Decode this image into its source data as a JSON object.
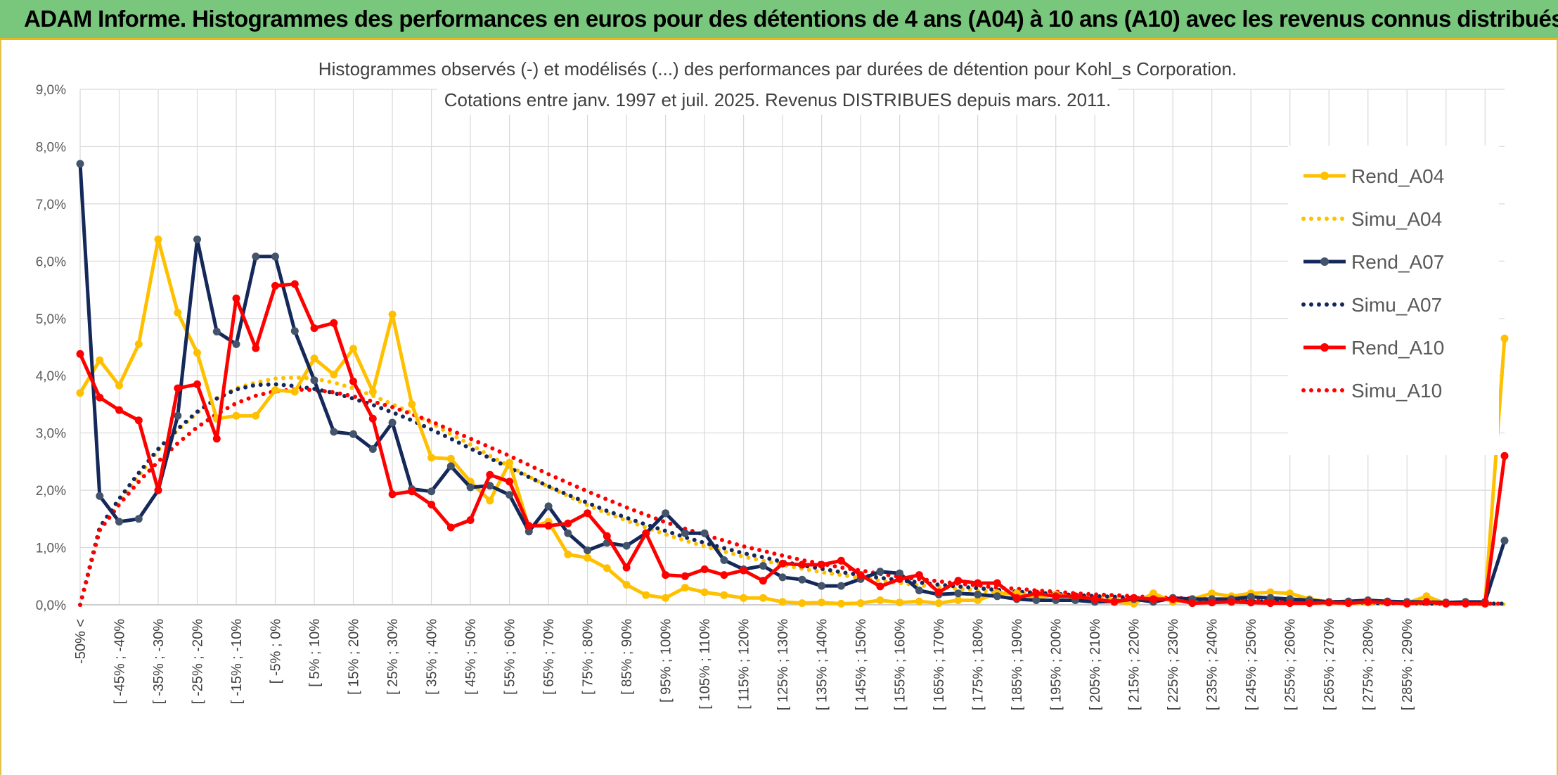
{
  "header": {
    "title": "ADAM Informe. Histogrammes des performances en euros pour des détentions de 4 ans (A04) à 10 ans (A10) avec les revenus connus distribués"
  },
  "chart_data": {
    "type": "line",
    "title": "Histogrammes observés (-) et modélisés (...) des performances par durées de détention pour Kohl_s Corporation.",
    "subtitle": "Cotations entre janv. 1997 et juil. 2025. Revenus DISTRIBUES depuis mars. 2011.",
    "xlabel": "",
    "ylabel": "",
    "ylim": [
      0,
      9
    ],
    "y_unit": "%",
    "y_ticks": [
      "0,0%",
      "1,0%",
      "2,0%",
      "3,0%",
      "4,0%",
      "5,0%",
      "6,0%",
      "7,0%",
      "8,0%",
      "9,0%"
    ],
    "grid": true,
    "legend_position": "right",
    "x_tick_labels": [
      "-50% <",
      "[ -45% ; -40%",
      "[ -35% ; -30%",
      "[ -25% ; -20%",
      "[ -15% ; -10%",
      "[ -5% ; 0%",
      "[ 5% ; 10%",
      "[ 15% ; 20%",
      "[ 25% ; 30%",
      "[ 35% ; 40%",
      "[ 45% ; 50%",
      "[ 55% ; 60%",
      "[ 65% ; 70%",
      "[ 75% ; 80%",
      "[ 85% ; 90%",
      "[ 95% ; 100%",
      "[ 105% ; 110%",
      "[ 115% ; 120%",
      "[ 125% ; 130%",
      "[ 135% ; 140%",
      "[ 145% ; 150%",
      "[ 155% ; 160%",
      "[ 165% ; 170%",
      "[ 175% ; 180%",
      "[ 185% ; 190%",
      "[ 195% ; 200%",
      "[ 205% ; 210%",
      "[ 215% ; 220%",
      "[ 225% ; 230%",
      "[ 235% ; 240%",
      "[ 245% ; 250%",
      "[ 255% ; 260%",
      "[ 265% ; 270%",
      "[ 275% ; 280%",
      "[ 285% ; 290%"
    ],
    "series": [
      {
        "name": "Rend_A04",
        "style": "solid",
        "color": "#ffc000",
        "values": [
          3.7,
          4.27,
          3.83,
          4.55,
          6.38,
          5.1,
          4.4,
          3.25,
          3.3,
          3.3,
          3.75,
          3.72,
          4.3,
          4.02,
          4.47,
          3.72,
          5.07,
          3.5,
          2.57,
          2.55,
          2.15,
          1.82,
          2.48,
          1.35,
          1.45,
          0.88,
          0.82,
          0.64,
          0.35,
          0.17,
          0.12,
          0.3,
          0.22,
          0.17,
          0.12,
          0.12,
          0.05,
          0.03,
          0.04,
          0.02,
          0.03,
          0.08,
          0.04,
          0.06,
          0.03,
          0.08,
          0.08,
          0.2,
          0.2,
          0.12,
          0.18,
          0.13,
          0.1,
          0.05,
          0.02,
          0.2,
          0.05,
          0.1,
          0.2,
          0.15,
          0.2,
          0.22,
          0.2,
          0.1,
          0.05,
          0.03,
          0.04,
          0.05,
          0.03,
          0.15,
          0.02,
          0.05,
          0.02,
          4.65
        ]
      },
      {
        "name": "Simu_A04",
        "style": "dotted",
        "color": "#ffc000",
        "values": [
          0,
          1.3,
          1.8,
          2.25,
          2.7,
          3.05,
          3.35,
          3.6,
          3.78,
          3.88,
          3.95,
          3.97,
          3.95,
          3.88,
          3.78,
          3.65,
          3.5,
          3.35,
          3.17,
          2.98,
          2.8,
          2.6,
          2.42,
          2.24,
          2.06,
          1.9,
          1.74,
          1.6,
          1.47,
          1.35,
          1.23,
          1.12,
          1.02,
          0.93,
          0.84,
          0.77,
          0.7,
          0.63,
          0.57,
          0.52,
          0.47,
          0.42,
          0.38,
          0.34,
          0.31,
          0.28,
          0.25,
          0.22,
          0.2,
          0.18,
          0.16,
          0.14,
          0.13,
          0.11,
          0.1,
          0.09,
          0.08,
          0.07,
          0.06,
          0.05,
          0.05,
          0.04,
          0.04,
          0.03,
          0.03,
          0.03,
          0.02,
          0.02,
          0.02,
          0.02,
          0.02,
          0.01,
          0.01,
          0.01
        ]
      },
      {
        "name": "Rend_A07",
        "style": "solid",
        "color": "#14285a",
        "values": [
          7.7,
          1.9,
          1.45,
          1.5,
          2.0,
          3.3,
          6.38,
          4.77,
          4.55,
          6.08,
          6.08,
          4.78,
          3.92,
          3.02,
          2.98,
          2.72,
          3.18,
          2.02,
          1.98,
          2.42,
          2.05,
          2.08,
          1.92,
          1.28,
          1.72,
          1.25,
          0.95,
          1.08,
          1.03,
          1.25,
          1.6,
          1.25,
          1.25,
          0.78,
          0.62,
          0.68,
          0.48,
          0.44,
          0.33,
          0.33,
          0.45,
          0.58,
          0.55,
          0.25,
          0.18,
          0.2,
          0.18,
          0.15,
          0.1,
          0.08,
          0.08,
          0.08,
          0.05,
          0.06,
          0.1,
          0.05,
          0.12,
          0.1,
          0.1,
          0.1,
          0.14,
          0.12,
          0.1,
          0.08,
          0.05,
          0.06,
          0.08,
          0.06,
          0.05,
          0.05,
          0.04,
          0.05,
          0.05,
          1.12
        ]
      },
      {
        "name": "Simu_A07",
        "style": "dotted",
        "color": "#14285a",
        "values": [
          0,
          1.35,
          1.85,
          2.3,
          2.72,
          3.07,
          3.37,
          3.6,
          3.76,
          3.84,
          3.85,
          3.82,
          3.77,
          3.7,
          3.6,
          3.49,
          3.36,
          3.22,
          3.06,
          2.9,
          2.73,
          2.56,
          2.39,
          2.23,
          2.07,
          1.92,
          1.78,
          1.64,
          1.52,
          1.4,
          1.29,
          1.18,
          1.08,
          0.99,
          0.9,
          0.83,
          0.75,
          0.69,
          0.63,
          0.57,
          0.52,
          0.47,
          0.43,
          0.39,
          0.35,
          0.32,
          0.29,
          0.26,
          0.23,
          0.21,
          0.19,
          0.17,
          0.15,
          0.14,
          0.12,
          0.11,
          0.1,
          0.09,
          0.08,
          0.07,
          0.06,
          0.06,
          0.05,
          0.05,
          0.04,
          0.04,
          0.03,
          0.03,
          0.03,
          0.02,
          0.02,
          0.02,
          0.02,
          0.02
        ]
      },
      {
        "name": "Rend_A10",
        "style": "solid",
        "color": "#ff0000",
        "values": [
          4.38,
          3.62,
          3.4,
          3.22,
          2.0,
          3.78,
          3.85,
          2.9,
          5.35,
          4.48,
          5.57,
          5.6,
          4.83,
          4.92,
          3.9,
          3.25,
          1.93,
          1.98,
          1.75,
          1.35,
          1.48,
          2.27,
          2.15,
          1.38,
          1.38,
          1.42,
          1.6,
          1.2,
          0.65,
          1.25,
          0.52,
          0.5,
          0.62,
          0.52,
          0.6,
          0.42,
          0.72,
          0.7,
          0.7,
          0.77,
          0.52,
          0.32,
          0.45,
          0.52,
          0.22,
          0.42,
          0.38,
          0.38,
          0.12,
          0.2,
          0.15,
          0.15,
          0.1,
          0.05,
          0.12,
          0.1,
          0.1,
          0.03,
          0.04,
          0.05,
          0.04,
          0.03,
          0.03,
          0.03,
          0.04,
          0.03,
          0.05,
          0.04,
          0.02,
          0.05,
          0.02,
          0.02,
          0.02,
          2.6
        ]
      },
      {
        "name": "Simu_A10",
        "style": "dotted",
        "color": "#ff0000",
        "values": [
          0,
          1.3,
          1.75,
          2.15,
          2.5,
          2.82,
          3.1,
          3.33,
          3.52,
          3.65,
          3.73,
          3.76,
          3.75,
          3.71,
          3.64,
          3.55,
          3.45,
          3.33,
          3.2,
          3.05,
          2.9,
          2.75,
          2.6,
          2.44,
          2.28,
          2.13,
          1.98,
          1.84,
          1.7,
          1.57,
          1.44,
          1.33,
          1.22,
          1.12,
          1.02,
          0.94,
          0.86,
          0.78,
          0.72,
          0.65,
          0.6,
          0.54,
          0.49,
          0.45,
          0.41,
          0.37,
          0.34,
          0.3,
          0.28,
          0.25,
          0.23,
          0.2,
          0.18,
          0.17,
          0.15,
          0.13,
          0.12,
          0.11,
          0.1,
          0.09,
          0.08,
          0.07,
          0.06,
          0.06,
          0.05,
          0.05,
          0.04,
          0.04,
          0.03,
          0.03,
          0.03,
          0.02,
          0.02,
          0.02
        ]
      }
    ]
  }
}
